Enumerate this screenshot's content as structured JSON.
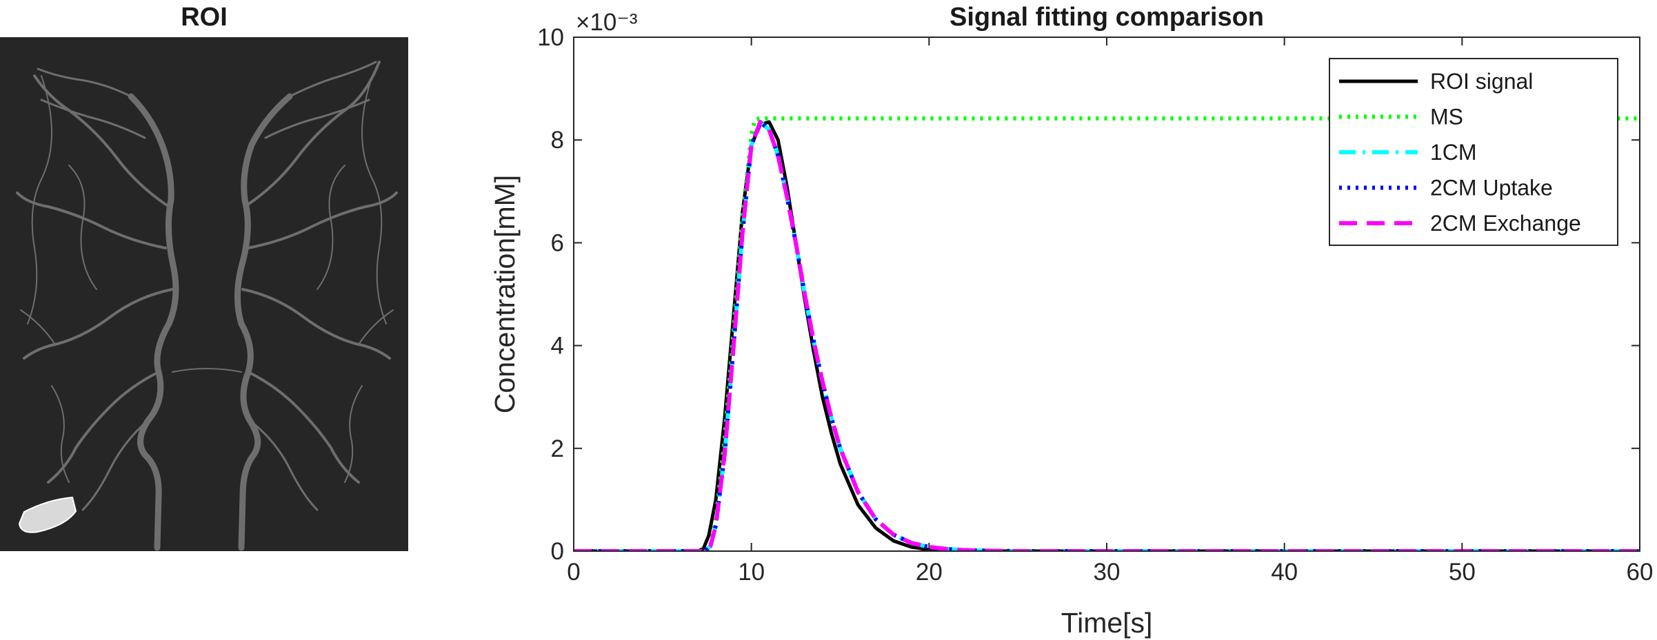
{
  "roi_panel": {
    "title": "ROI"
  },
  "chart_data": {
    "type": "line",
    "title": "Signal fitting comparison",
    "xlabel": "Time[s]",
    "ylabel": "Concentration[mM]",
    "y_multiplier": "×10⁻³",
    "xlim": [
      0,
      60
    ],
    "ylim": [
      0,
      10
    ],
    "xticks": [
      "0",
      "10",
      "20",
      "30",
      "40",
      "50",
      "60"
    ],
    "yticks": [
      "0",
      "2",
      "4",
      "6",
      "8",
      "10"
    ],
    "grid": false,
    "legend_position": "top-right",
    "series": [
      {
        "name": "ROI signal",
        "color": "#000000",
        "dash": "solid",
        "x": [
          0,
          2,
          4,
          6,
          7,
          7.3,
          7.6,
          8,
          8.5,
          9,
          9.5,
          10,
          10.5,
          11,
          11.5,
          12,
          12.5,
          13,
          13.5,
          14,
          14.5,
          15,
          16,
          17,
          18,
          19,
          20,
          21,
          22,
          25,
          30,
          35,
          40,
          45,
          50,
          55,
          60
        ],
        "y": [
          0,
          0,
          0,
          0,
          0,
          0.05,
          0.3,
          1.0,
          2.6,
          4.6,
          6.6,
          7.9,
          8.3,
          8.35,
          8.0,
          7.1,
          6.0,
          4.9,
          3.9,
          3.0,
          2.3,
          1.7,
          0.9,
          0.45,
          0.2,
          0.08,
          0.03,
          0.01,
          0,
          0,
          0,
          0,
          0,
          0,
          0,
          0,
          0
        ]
      },
      {
        "name": "MS",
        "color": "#00ff00",
        "dash": "dot",
        "x": [
          0,
          2,
          4,
          6,
          7.5,
          7.7,
          8,
          8.5,
          9,
          9.5,
          10,
          10.2,
          10.5,
          20,
          30,
          40,
          50,
          60
        ],
        "y": [
          0,
          0,
          0,
          0,
          0,
          0.1,
          0.6,
          2.2,
          4.3,
          6.5,
          8.1,
          8.4,
          8.42,
          8.42,
          8.42,
          8.42,
          8.42,
          8.42
        ]
      },
      {
        "name": "1CM",
        "color": "#00ffff",
        "dash": "dashdot",
        "x": [
          0,
          2,
          4,
          6,
          7.4,
          7.7,
          8,
          8.5,
          9,
          9.5,
          10,
          10.5,
          11,
          11.5,
          12,
          12.5,
          13,
          13.5,
          14,
          14.5,
          15,
          16,
          17,
          18,
          19,
          20,
          21,
          22,
          23,
          25,
          30,
          35,
          40,
          45,
          50,
          55,
          60
        ],
        "y": [
          0,
          0,
          0,
          0,
          0,
          0.1,
          0.5,
          1.9,
          4.0,
          6.2,
          7.9,
          8.35,
          8.2,
          7.7,
          6.9,
          6.0,
          5.0,
          4.1,
          3.3,
          2.6,
          2.0,
          1.15,
          0.62,
          0.32,
          0.16,
          0.08,
          0.04,
          0.02,
          0.01,
          0,
          0,
          0,
          0,
          0,
          0,
          0,
          0
        ]
      },
      {
        "name": "2CM Uptake",
        "color": "#0000ff",
        "dash": "dot",
        "x": [
          0,
          2,
          4,
          6,
          7.4,
          7.7,
          8,
          8.5,
          9,
          9.5,
          10,
          10.5,
          11,
          11.5,
          12,
          12.5,
          13,
          13.5,
          14,
          14.5,
          15,
          16,
          17,
          18,
          19,
          20,
          21,
          22,
          23,
          25,
          30,
          35,
          40,
          45,
          50,
          55,
          60
        ],
        "y": [
          0,
          0,
          0,
          0,
          0,
          0.1,
          0.5,
          1.9,
          4.0,
          6.2,
          7.9,
          8.35,
          8.2,
          7.7,
          6.9,
          6.0,
          5.0,
          4.1,
          3.3,
          2.6,
          2.0,
          1.15,
          0.62,
          0.32,
          0.16,
          0.08,
          0.04,
          0.02,
          0.01,
          0,
          0,
          0,
          0,
          0,
          0,
          0,
          0
        ]
      },
      {
        "name": "2CM Exchange",
        "color": "#ff00ff",
        "dash": "dash",
        "x": [
          0,
          2,
          4,
          6,
          7.4,
          7.7,
          8,
          8.5,
          9,
          9.5,
          10,
          10.5,
          11,
          11.5,
          12,
          12.5,
          13,
          13.5,
          14,
          14.5,
          15,
          16,
          17,
          18,
          19,
          20,
          21,
          22,
          23,
          25,
          30,
          35,
          40,
          45,
          50,
          55,
          60
        ],
        "y": [
          0,
          0,
          0,
          0,
          0,
          0.1,
          0.5,
          1.9,
          4.0,
          6.2,
          7.9,
          8.35,
          8.2,
          7.7,
          6.9,
          6.0,
          5.0,
          4.1,
          3.3,
          2.6,
          2.0,
          1.15,
          0.62,
          0.32,
          0.16,
          0.08,
          0.04,
          0.02,
          0.01,
          0,
          0,
          0,
          0,
          0,
          0,
          0,
          0
        ]
      }
    ]
  }
}
